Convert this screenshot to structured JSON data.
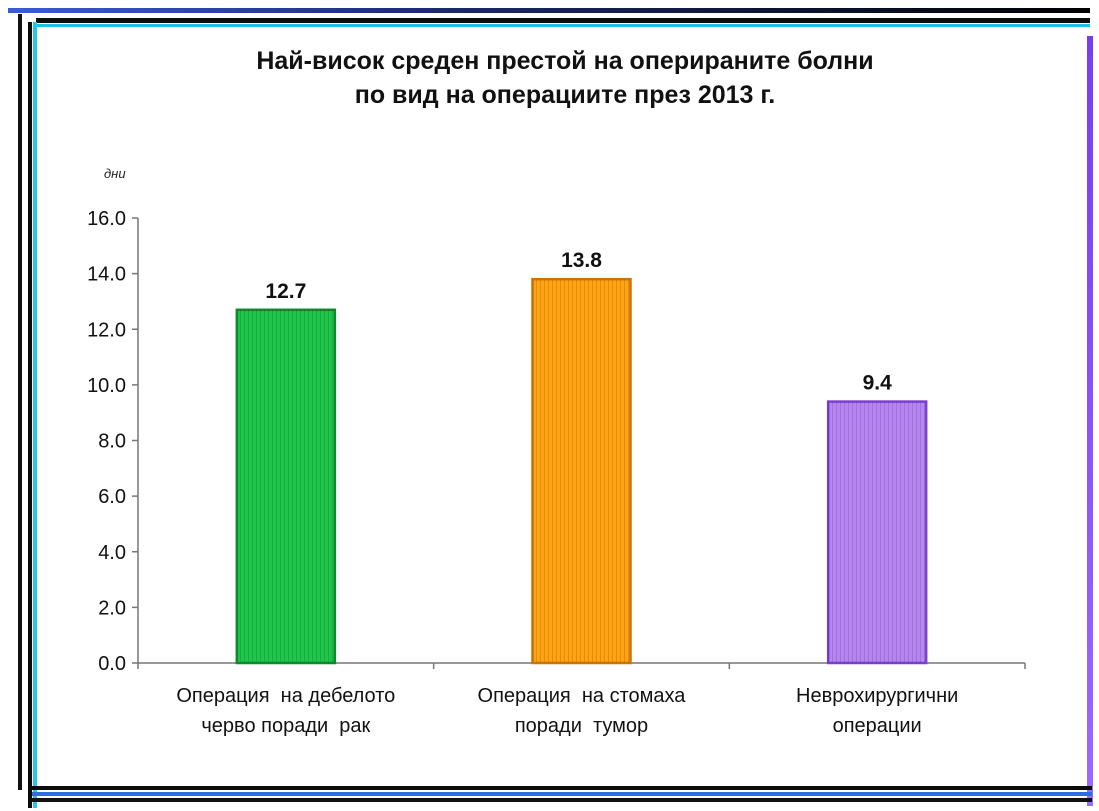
{
  "chart_data": {
    "type": "bar",
    "title_lines": [
      "Най-висок среден престой на оперираните болни",
      "по вид на операциите през 2013 г."
    ],
    "ylabel": "дни",
    "ylim": [
      0,
      16
    ],
    "y_ticks": [
      "0.0",
      "2.0",
      "4.0",
      "6.0",
      "8.0",
      "10.0",
      "12.0",
      "14.0",
      "16.0"
    ],
    "grid": false,
    "categories": [
      [
        "Операция  на дебелото",
        "черво поради  рак"
      ],
      [
        "Операция  на стомаха",
        "поради  тумор"
      ],
      [
        "Неврохирургични",
        "операции"
      ]
    ],
    "values": [
      12.7,
      13.8,
      9.4
    ],
    "value_labels": [
      "12.7",
      "13.8",
      "9.4"
    ],
    "bar_colors": [
      "#1fc54a",
      "#ffa214",
      "#b685f2"
    ],
    "bar_edge_colors": [
      "#0e8a2c",
      "#c9750a",
      "#7b3fd0"
    ]
  }
}
